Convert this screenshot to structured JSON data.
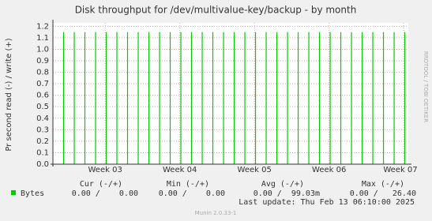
{
  "chart_data": {
    "type": "impulse",
    "title": "Disk throughput for /dev/multivalue-key/backup - by month",
    "y_label": "Pr second read (-) / write (+)",
    "side_label": "RRDTOOL / TOBI OETIKER",
    "x": [
      1,
      2,
      3,
      4,
      5,
      6,
      7,
      8,
      9,
      10,
      11,
      12,
      13,
      14,
      15,
      16,
      17,
      18,
      19,
      20,
      21,
      22,
      23,
      24,
      25,
      26,
      27,
      28,
      29,
      30,
      31,
      32,
      33
    ],
    "series": [
      {
        "name": "Bytes",
        "color": "#00cc00",
        "values": [
          1.15,
          1.15,
          1.15,
          1.15,
          1.15,
          1.15,
          1.15,
          1.15,
          1.15,
          1.15,
          1.15,
          1.15,
          1.15,
          1.15,
          1.15,
          1.15,
          1.15,
          1.15,
          1.15,
          1.15,
          1.15,
          1.15,
          1.15,
          1.15,
          1.15,
          1.15,
          1.15,
          1.15,
          1.15,
          1.15,
          1.15,
          1.15,
          1.15
        ]
      }
    ],
    "xlim": [
      0,
      33.33
    ],
    "xticks": [
      {
        "value": 4.9,
        "label": "Week 03"
      },
      {
        "value": 11.9,
        "label": "Week 04"
      },
      {
        "value": 18.9,
        "label": "Week 05"
      },
      {
        "value": 25.9,
        "label": "Week 06"
      },
      {
        "value": 32.9,
        "label": "Week 07"
      }
    ],
    "ylim": [
      0,
      1.23
    ],
    "yticks": [
      {
        "value": 0,
        "label": "0.0"
      },
      0.1,
      0.2,
      0.3,
      0.4,
      0.5,
      0.6,
      0.7,
      0.8,
      0.9,
      {
        "value": 1,
        "label": "1.0"
      },
      1.1,
      1.2
    ],
    "grid": true,
    "stats": {
      "headers": [
        "Cur (-/+)",
        "Min (-/+)",
        "Avg (-/+)",
        "Max (-/+)"
      ],
      "row_name": "Bytes",
      "cells": [
        "0.00 /    0.00",
        "0.00 /    0.00",
        "0.00 /  99.03m",
        "0.00 /   26.40"
      ]
    },
    "last_update": "Last update:  Thu Feb 13 06:10:00 2025",
    "footer": "Munin 2.0.33-1"
  }
}
